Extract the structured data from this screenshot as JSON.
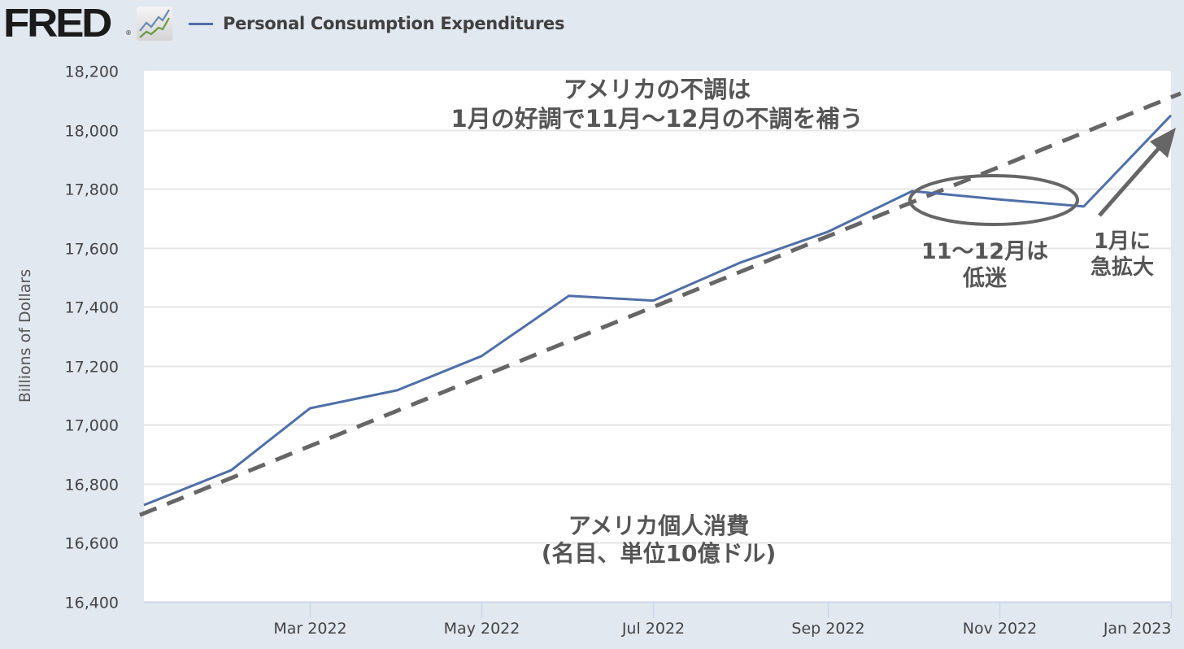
{
  "header": {
    "logo": "FRED",
    "logo_reg": "®",
    "logo_icon": "line-chart-icon",
    "legend_label": "Personal Consumption Expenditures"
  },
  "colors": {
    "series": "#4f6fa7",
    "trend": "#666666",
    "annotation": "#555555",
    "background": "#e1e8f0",
    "plot_bg": "#ffffff",
    "grid": "#e6e6e6"
  },
  "annotations": {
    "title_line1": "アメリカの不調は",
    "title_line2": "1月の好調で11月～12月の不調を補う",
    "slump_line1": "11～12月は",
    "slump_line2": "低迷",
    "jump_line1": "1月に",
    "jump_line2": "急拡大",
    "subtitle_line1": "アメリカ個人消費",
    "subtitle_line2": "(名目、単位10億ドル)"
  },
  "chart_data": {
    "type": "line",
    "title": "Personal Consumption Expenditures",
    "xlabel": "",
    "ylabel": "Billions of Dollars",
    "ylim": [
      16400,
      18200
    ],
    "yticks": [
      16400,
      16600,
      16800,
      17000,
      17200,
      17400,
      17600,
      17800,
      18000,
      18200
    ],
    "ytick_labels": [
      "16,400",
      "16,600",
      "16,800",
      "17,000",
      "17,200",
      "17,400",
      "17,600",
      "17,800",
      "18,000",
      "18,200"
    ],
    "xticks": [
      "2022-03",
      "2022-05",
      "2022-07",
      "2022-09",
      "2022-11",
      "2023-01"
    ],
    "xtick_labels": [
      "Mar 2022",
      "May 2022",
      "Jul 2022",
      "Sep 2022",
      "Nov 2022",
      "Jan 2023"
    ],
    "grid": true,
    "legend": "top-left",
    "x": [
      "2022-01",
      "2022-02",
      "2022-03",
      "2022-04",
      "2022-05",
      "2022-06",
      "2022-07",
      "2022-08",
      "2022-09",
      "2022-10",
      "2022-11",
      "2022-12",
      "2023-01"
    ],
    "series": [
      {
        "name": "Personal Consumption Expenditures",
        "values": [
          16728,
          16846,
          17056,
          17117,
          17233,
          17437,
          17421,
          17550,
          17654,
          17792,
          17764,
          17740,
          18049
        ]
      }
    ],
    "trendline": {
      "name": "trend",
      "style": "dashed",
      "start": {
        "x": "2022-01",
        "value": 16700
      },
      "end": {
        "x": "2023-01",
        "value": 18110
      }
    }
  }
}
